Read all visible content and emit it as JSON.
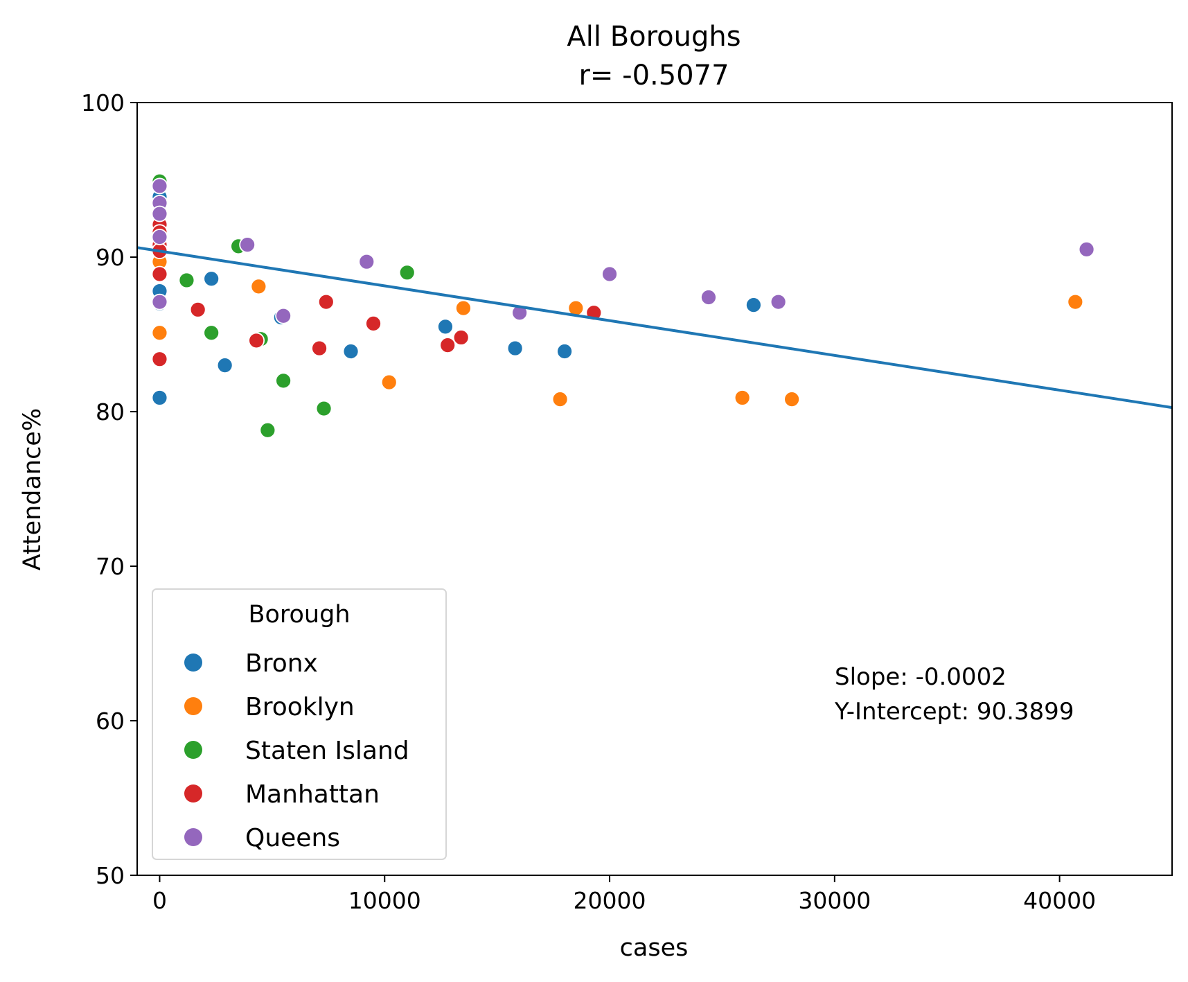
{
  "chart_data": {
    "type": "scatter",
    "title": "All Boroughs",
    "subtitle": "r= -0.5077",
    "xlabel": "cases",
    "ylabel": "Attendance%",
    "xlim": [
      -1000,
      45000
    ],
    "ylim": [
      50,
      100
    ],
    "xticks": [
      0,
      10000,
      20000,
      30000,
      40000
    ],
    "yticks": [
      50,
      60,
      70,
      80,
      90,
      100
    ],
    "grid": false,
    "legend": {
      "title": "Borough",
      "position": "lower-left"
    },
    "annotation": [
      "Slope: -0.0002",
      "Y-Intercept: 90.3899"
    ],
    "regression": {
      "slope": -0.000225,
      "intercept": 90.3899
    },
    "series": [
      {
        "name": "Bronx",
        "color": "#1f77b4",
        "points": [
          [
            0,
            93.9
          ],
          [
            0,
            92.0
          ],
          [
            0,
            87.8
          ],
          [
            0,
            87.0
          ],
          [
            0,
            80.9
          ],
          [
            2300,
            88.6
          ],
          [
            2900,
            83.0
          ],
          [
            5400,
            86.1
          ],
          [
            8500,
            83.9
          ],
          [
            12700,
            85.5
          ],
          [
            15800,
            84.1
          ],
          [
            18000,
            83.9
          ],
          [
            26400,
            86.9
          ]
        ]
      },
      {
        "name": "Brooklyn",
        "color": "#ff7f0e",
        "points": [
          [
            0,
            91.5
          ],
          [
            0,
            90.4
          ],
          [
            0,
            89.7
          ],
          [
            0,
            85.1
          ],
          [
            4400,
            88.1
          ],
          [
            10200,
            81.9
          ],
          [
            13500,
            86.7
          ],
          [
            17800,
            80.8
          ],
          [
            18500,
            86.7
          ],
          [
            25900,
            80.9
          ],
          [
            28100,
            80.8
          ],
          [
            40700,
            87.1
          ]
        ]
      },
      {
        "name": "Staten Island",
        "color": "#2ca02c",
        "points": [
          [
            0,
            94.9
          ],
          [
            0,
            93.4
          ],
          [
            1200,
            88.5
          ],
          [
            2300,
            85.1
          ],
          [
            3500,
            90.7
          ],
          [
            4500,
            84.7
          ],
          [
            4800,
            78.8
          ],
          [
            5500,
            82.0
          ],
          [
            7300,
            80.2
          ],
          [
            11000,
            89.0
          ]
        ]
      },
      {
        "name": "Manhattan",
        "color": "#d62728",
        "points": [
          [
            0,
            92.1
          ],
          [
            0,
            91.6
          ],
          [
            0,
            90.8
          ],
          [
            0,
            90.4
          ],
          [
            0,
            88.9
          ],
          [
            0,
            83.4
          ],
          [
            1700,
            86.6
          ],
          [
            4300,
            84.6
          ],
          [
            7100,
            84.1
          ],
          [
            7400,
            87.1
          ],
          [
            9500,
            85.7
          ],
          [
            12800,
            84.3
          ],
          [
            13400,
            84.8
          ],
          [
            19300,
            86.4
          ]
        ]
      },
      {
        "name": "Queens",
        "color": "#9467bd",
        "points": [
          [
            0,
            94.6
          ],
          [
            0,
            93.5
          ],
          [
            0,
            92.8
          ],
          [
            0,
            91.3
          ],
          [
            0,
            87.1
          ],
          [
            3900,
            90.8
          ],
          [
            5500,
            86.2
          ],
          [
            9200,
            89.7
          ],
          [
            16000,
            86.4
          ],
          [
            20000,
            88.9
          ],
          [
            24400,
            87.4
          ],
          [
            27500,
            87.1
          ],
          [
            41200,
            90.5
          ]
        ]
      }
    ]
  }
}
